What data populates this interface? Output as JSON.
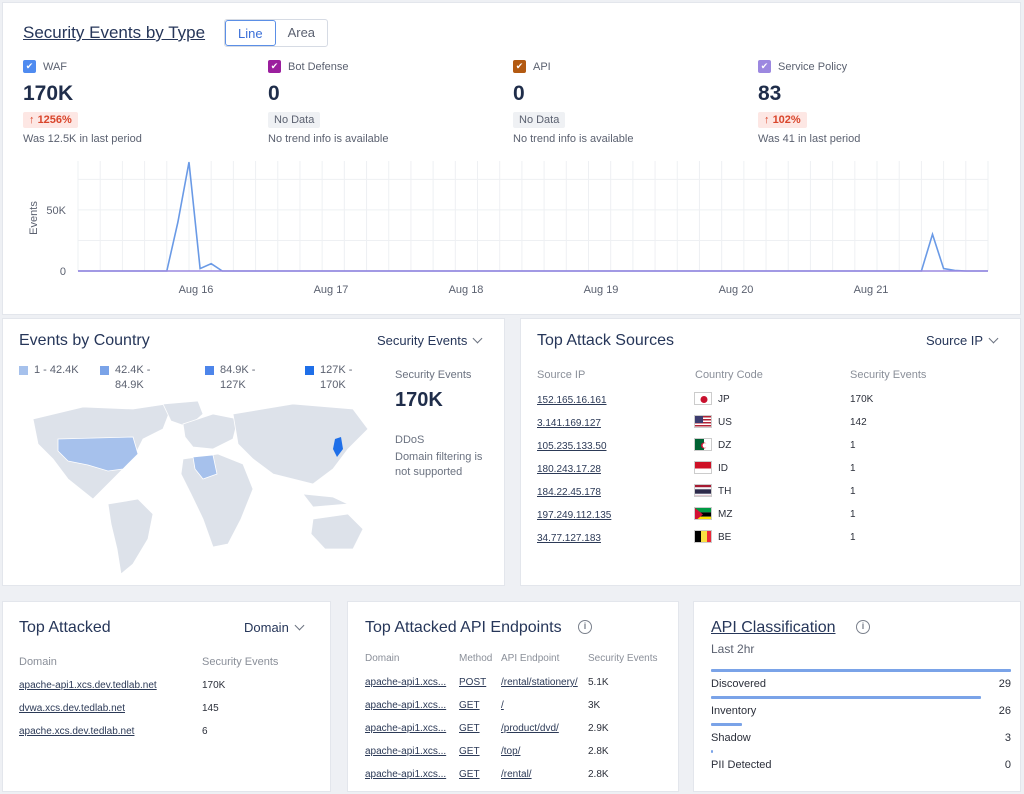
{
  "top": {
    "title": "Security Events by Type",
    "toggle": [
      "Line",
      "Area"
    ],
    "stats": [
      {
        "label": "WAF",
        "value": "170K",
        "badge": "1256%",
        "badge_type": "trend",
        "sub": "Was 12.5K in last period",
        "color": "#4f8bf0"
      },
      {
        "label": "Bot Defense",
        "value": "0",
        "badge": "No Data",
        "badge_type": "nodata",
        "sub": "No trend info is available",
        "color": "#9b1f9e"
      },
      {
        "label": "API",
        "value": "0",
        "badge": "No Data",
        "badge_type": "nodata",
        "sub": "No trend info is available",
        "color": "#b35a12"
      },
      {
        "label": "Service Policy",
        "value": "83",
        "badge": "102%",
        "badge_type": "trend",
        "sub": "Was 41 in last period",
        "color": "#9c88e0"
      }
    ]
  },
  "chart_data": {
    "type": "line",
    "ylabel": "Events",
    "ylim": [
      0,
      90000
    ],
    "yticks": [
      {
        "v": 0,
        "label": "0"
      },
      {
        "v": 50000,
        "label": "50K"
      }
    ],
    "xticks": [
      "Aug 16",
      "Aug 17",
      "Aug 18",
      "Aug 19",
      "Aug 20",
      "Aug 21"
    ],
    "series": [
      {
        "name": "WAF",
        "color": "#6a9ae6",
        "points": [
          [
            0,
            0
          ],
          [
            0.25,
            0
          ],
          [
            0.5,
            0
          ],
          [
            0.75,
            0
          ],
          [
            1,
            0
          ],
          [
            1.25,
            0
          ],
          [
            1.5,
            0
          ],
          [
            1.75,
            0
          ],
          [
            2,
            0
          ],
          [
            2.25,
            40000
          ],
          [
            2.5,
            89000
          ],
          [
            2.75,
            2000
          ],
          [
            3,
            6000
          ],
          [
            3.25,
            0
          ],
          [
            3.5,
            0
          ],
          [
            3.75,
            0
          ],
          [
            4,
            0
          ],
          [
            4.25,
            0
          ],
          [
            4.5,
            0
          ],
          [
            4.75,
            0
          ],
          [
            5,
            0
          ],
          [
            5.25,
            0
          ],
          [
            5.5,
            0
          ],
          [
            5.75,
            0
          ],
          [
            6,
            0
          ],
          [
            6.25,
            0
          ],
          [
            6.5,
            0
          ],
          [
            6.75,
            0
          ],
          [
            7,
            0
          ],
          [
            7.25,
            0
          ],
          [
            7.5,
            0
          ],
          [
            7.75,
            0
          ],
          [
            8,
            0
          ],
          [
            8.25,
            0
          ],
          [
            8.5,
            0
          ],
          [
            8.75,
            0
          ],
          [
            9,
            0
          ],
          [
            9.25,
            0
          ],
          [
            9.5,
            0
          ],
          [
            9.75,
            0
          ],
          [
            10,
            0
          ],
          [
            10.25,
            0
          ],
          [
            10.5,
            0
          ],
          [
            10.75,
            0
          ],
          [
            11,
            0
          ],
          [
            11.25,
            0
          ],
          [
            11.5,
            0
          ],
          [
            11.75,
            0
          ],
          [
            12,
            0
          ],
          [
            12.25,
            0
          ],
          [
            12.5,
            0
          ],
          [
            12.75,
            0
          ],
          [
            13,
            0
          ],
          [
            13.25,
            0
          ],
          [
            13.5,
            0
          ],
          [
            13.75,
            0
          ],
          [
            14,
            0
          ],
          [
            14.25,
            0
          ],
          [
            14.5,
            0
          ],
          [
            14.75,
            0
          ],
          [
            15,
            0
          ],
          [
            15.25,
            0
          ],
          [
            15.5,
            0
          ],
          [
            15.75,
            0
          ],
          [
            16,
            0
          ],
          [
            16.25,
            0
          ],
          [
            16.5,
            0
          ],
          [
            16.75,
            0
          ],
          [
            17,
            0
          ],
          [
            17.25,
            0
          ],
          [
            17.5,
            0
          ],
          [
            17.75,
            0
          ],
          [
            18,
            0
          ],
          [
            18.25,
            0
          ],
          [
            18.5,
            0
          ],
          [
            18.75,
            0
          ],
          [
            19,
            0
          ],
          [
            19.25,
            30000
          ],
          [
            19.5,
            2000
          ],
          [
            19.75,
            500
          ],
          [
            20,
            0
          ],
          [
            20.25,
            0
          ],
          [
            20.5,
            0
          ]
        ]
      },
      {
        "name": "Service Policy",
        "color": "#9c88e0",
        "points": [
          [
            0,
            0
          ],
          [
            20.5,
            0
          ]
        ]
      }
    ]
  },
  "country": {
    "title": "Events by Country",
    "dropdown": "Security Events",
    "legend": [
      {
        "label": "1 - 42.4K",
        "color": "#a6c1ec"
      },
      {
        "label": "42.4K - 84.9K",
        "color": "#7aa3e8"
      },
      {
        "label": "84.9K - 127K",
        "color": "#4d85ea"
      },
      {
        "label": "127K - 170K",
        "color": "#1f6fe8"
      }
    ],
    "total_label": "Security Events",
    "total_value": "170K",
    "ddos_title": "DDoS",
    "ddos_text": "Domain filtering is not supported"
  },
  "sources": {
    "title": "Top Attack Sources",
    "dropdown": "Source IP",
    "headers": [
      "Source IP",
      "Country Code",
      "Security Events"
    ],
    "rows": [
      {
        "ip": "152.165.16.161",
        "cc": "JP",
        "events": "170K",
        "flag": "jp"
      },
      {
        "ip": "3.141.169.127",
        "cc": "US",
        "events": "142",
        "flag": "us"
      },
      {
        "ip": "105.235.133.50",
        "cc": "DZ",
        "events": "1",
        "flag": "dz"
      },
      {
        "ip": "180.243.17.28",
        "cc": "ID",
        "events": "1",
        "flag": "id"
      },
      {
        "ip": "184.22.45.178",
        "cc": "TH",
        "events": "1",
        "flag": "th"
      },
      {
        "ip": "197.249.112.135",
        "cc": "MZ",
        "events": "1",
        "flag": "mz"
      },
      {
        "ip": "34.77.127.183",
        "cc": "BE",
        "events": "1",
        "flag": "be"
      }
    ]
  },
  "attacked": {
    "title": "Top Attacked",
    "dropdown": "Domain",
    "headers": [
      "Domain",
      "Security Events"
    ],
    "rows": [
      {
        "domain": "apache-api1.xcs.dev.tedlab.net",
        "events": "170K"
      },
      {
        "domain": "dvwa.xcs.dev.tedlab.net",
        "events": "145"
      },
      {
        "domain": "apache.xcs.dev.tedlab.net",
        "events": "6"
      }
    ]
  },
  "api": {
    "title": "Top Attacked API Endpoints",
    "headers": [
      "Domain",
      "Method",
      "API Endpoint",
      "Security Events"
    ],
    "rows": [
      {
        "domain": "apache-api1.xcs...",
        "method": "POST",
        "endpoint": "/rental/stationery/",
        "events": "5.1K"
      },
      {
        "domain": "apache-api1.xcs...",
        "method": "GET",
        "endpoint": "/",
        "events": "3K"
      },
      {
        "domain": "apache-api1.xcs...",
        "method": "GET",
        "endpoint": "/product/dvd/",
        "events": "2.9K"
      },
      {
        "domain": "apache-api1.xcs...",
        "method": "GET",
        "endpoint": "/top/",
        "events": "2.8K"
      },
      {
        "domain": "apache-api1.xcs...",
        "method": "GET",
        "endpoint": "/rental/",
        "events": "2.8K"
      }
    ]
  },
  "classification": {
    "title": "API Classification",
    "subtitle": "Last 2hr",
    "rows": [
      {
        "label": "Discovered",
        "value": "29",
        "fraction": 1.0
      },
      {
        "label": "Inventory",
        "value": "26",
        "fraction": 0.9
      },
      {
        "label": "Shadow",
        "value": "3",
        "fraction": 0.103
      },
      {
        "label": "PII Detected",
        "value": "0",
        "fraction": 0.0
      }
    ]
  }
}
